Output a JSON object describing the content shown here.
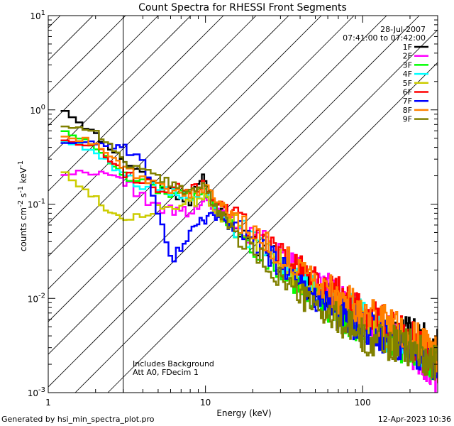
{
  "chart_data": {
    "type": "line",
    "title": "Count Spectra for RHESSI Front Segments",
    "xlabel": "Energy (keV)",
    "ylabel_base": "counts cm",
    "ylabel_sup1": "-2",
    "ylabel_mid1": " s",
    "ylabel_sup2": "-1",
    "ylabel_mid2": " keV",
    "ylabel_sup3": "-1",
    "x_scale": "log",
    "y_scale": "log",
    "xlim": [
      1,
      300
    ],
    "ylim": [
      0.001,
      10
    ],
    "x_tick_labels": [
      {
        "value": 1,
        "label": "1"
      },
      {
        "value": 10,
        "label": "10"
      },
      {
        "value": 100,
        "label": "100"
      }
    ],
    "y_tick_labels": [
      {
        "value": 0.001,
        "base": "10",
        "exp": "-3"
      },
      {
        "value": 0.01,
        "base": "10",
        "exp": "-2"
      },
      {
        "value": 0.1,
        "base": "10",
        "exp": "-1"
      },
      {
        "value": 1,
        "base": "10",
        "exp": "0"
      },
      {
        "value": 10,
        "base": "10",
        "exp": "1"
      }
    ],
    "date": "28-Jul-2007",
    "time_range": "07:41:00 to 07:42:00",
    "annotation_line1": "Includes Background",
    "annotation_line2": "Att A0, FDecim 1",
    "hatch_region_upper_kev": 3,
    "legend_position": "top-right",
    "series": [
      {
        "name": "1F",
        "color": "#000000",
        "seed": 11,
        "p": [
          [
            1.2,
            1.1
          ],
          [
            1.5,
            0.8
          ],
          [
            2,
            0.55
          ],
          [
            3,
            0.3
          ],
          [
            5,
            0.16
          ],
          [
            8,
            0.11
          ],
          [
            10,
            0.2
          ],
          [
            11,
            0.1
          ],
          [
            20,
            0.04
          ],
          [
            50,
            0.012
          ],
          [
            100,
            0.006
          ],
          [
            200,
            0.004
          ],
          [
            300,
            0.003
          ]
        ]
      },
      {
        "name": "2F",
        "color": "#ff00ff",
        "seed": 22,
        "p": [
          [
            1.2,
            0.21
          ],
          [
            2,
            0.22
          ],
          [
            3,
            0.18
          ],
          [
            5,
            0.09
          ],
          [
            8,
            0.08
          ],
          [
            10,
            0.11
          ],
          [
            11,
            0.09
          ],
          [
            20,
            0.05
          ],
          [
            50,
            0.015
          ],
          [
            100,
            0.006
          ],
          [
            200,
            0.003
          ],
          [
            300,
            0.0015
          ]
        ]
      },
      {
        "name": "3F",
        "color": "#00ff00",
        "seed": 33,
        "p": [
          [
            1.2,
            0.65
          ],
          [
            2,
            0.4
          ],
          [
            3,
            0.2
          ],
          [
            5,
            0.14
          ],
          [
            8,
            0.12
          ],
          [
            10,
            0.15
          ],
          [
            11,
            0.1
          ],
          [
            20,
            0.035
          ],
          [
            50,
            0.01
          ],
          [
            100,
            0.005
          ],
          [
            200,
            0.003
          ],
          [
            300,
            0.002
          ]
        ]
      },
      {
        "name": "4F",
        "color": "#00ffff",
        "seed": 44,
        "p": [
          [
            1.2,
            0.5
          ],
          [
            2,
            0.35
          ],
          [
            3,
            0.2
          ],
          [
            5,
            0.14
          ],
          [
            8,
            0.12
          ],
          [
            10,
            0.14
          ],
          [
            11,
            0.1
          ],
          [
            20,
            0.04
          ],
          [
            50,
            0.012
          ],
          [
            100,
            0.006
          ],
          [
            200,
            0.003
          ],
          [
            300,
            0.002
          ]
        ]
      },
      {
        "name": "5F",
        "color": "#cccc00",
        "seed": 55,
        "p": [
          [
            1.2,
            0.25
          ],
          [
            1.6,
            0.15
          ],
          [
            2,
            0.12
          ],
          [
            2.5,
            0.08
          ],
          [
            3,
            0.07
          ],
          [
            5,
            0.09
          ],
          [
            8,
            0.1
          ],
          [
            10,
            0.12
          ],
          [
            11,
            0.09
          ],
          [
            20,
            0.04
          ],
          [
            50,
            0.012
          ],
          [
            100,
            0.006
          ],
          [
            200,
            0.003
          ],
          [
            300,
            0.0018
          ]
        ]
      },
      {
        "name": "6F",
        "color": "#ff0000",
        "seed": 66,
        "p": [
          [
            1.2,
            0.5
          ],
          [
            2,
            0.42
          ],
          [
            3,
            0.22
          ],
          [
            5,
            0.15
          ],
          [
            8,
            0.14
          ],
          [
            10,
            0.16
          ],
          [
            11,
            0.12
          ],
          [
            20,
            0.05
          ],
          [
            50,
            0.016
          ],
          [
            100,
            0.007
          ],
          [
            200,
            0.004
          ],
          [
            300,
            0.002
          ]
        ]
      },
      {
        "name": "7F",
        "color": "#0000ff",
        "seed": 77,
        "p": [
          [
            1.2,
            0.46
          ],
          [
            2,
            0.45
          ],
          [
            3,
            0.4
          ],
          [
            4,
            0.3
          ],
          [
            5,
            0.08
          ],
          [
            6,
            0.025
          ],
          [
            8,
            0.05
          ],
          [
            10,
            0.07
          ],
          [
            11,
            0.08
          ],
          [
            20,
            0.04
          ],
          [
            50,
            0.01
          ],
          [
            100,
            0.005
          ],
          [
            200,
            0.003
          ],
          [
            300,
            0.002
          ]
        ]
      },
      {
        "name": "8F",
        "color": "#ff8000",
        "seed": 88,
        "p": [
          [
            1.2,
            0.55
          ],
          [
            2,
            0.45
          ],
          [
            3,
            0.25
          ],
          [
            5,
            0.16
          ],
          [
            8,
            0.13
          ],
          [
            10,
            0.15
          ],
          [
            11,
            0.12
          ],
          [
            20,
            0.05
          ],
          [
            50,
            0.015
          ],
          [
            100,
            0.007
          ],
          [
            200,
            0.004
          ],
          [
            300,
            0.0025
          ]
        ]
      },
      {
        "name": "9F",
        "color": "#808000",
        "seed": 99,
        "p": [
          [
            1.2,
            0.7
          ],
          [
            2,
            0.6
          ],
          [
            3,
            0.3
          ],
          [
            5,
            0.18
          ],
          [
            8,
            0.14
          ],
          [
            10,
            0.16
          ],
          [
            11,
            0.1
          ],
          [
            20,
            0.03
          ],
          [
            50,
            0.008
          ],
          [
            100,
            0.004
          ],
          [
            200,
            0.003
          ],
          [
            300,
            0.002
          ]
        ]
      }
    ]
  },
  "footer": {
    "generator": "Generated by hsi_min_spectra_plot.pro",
    "timestamp": "12-Apr-2023 10:36"
  }
}
